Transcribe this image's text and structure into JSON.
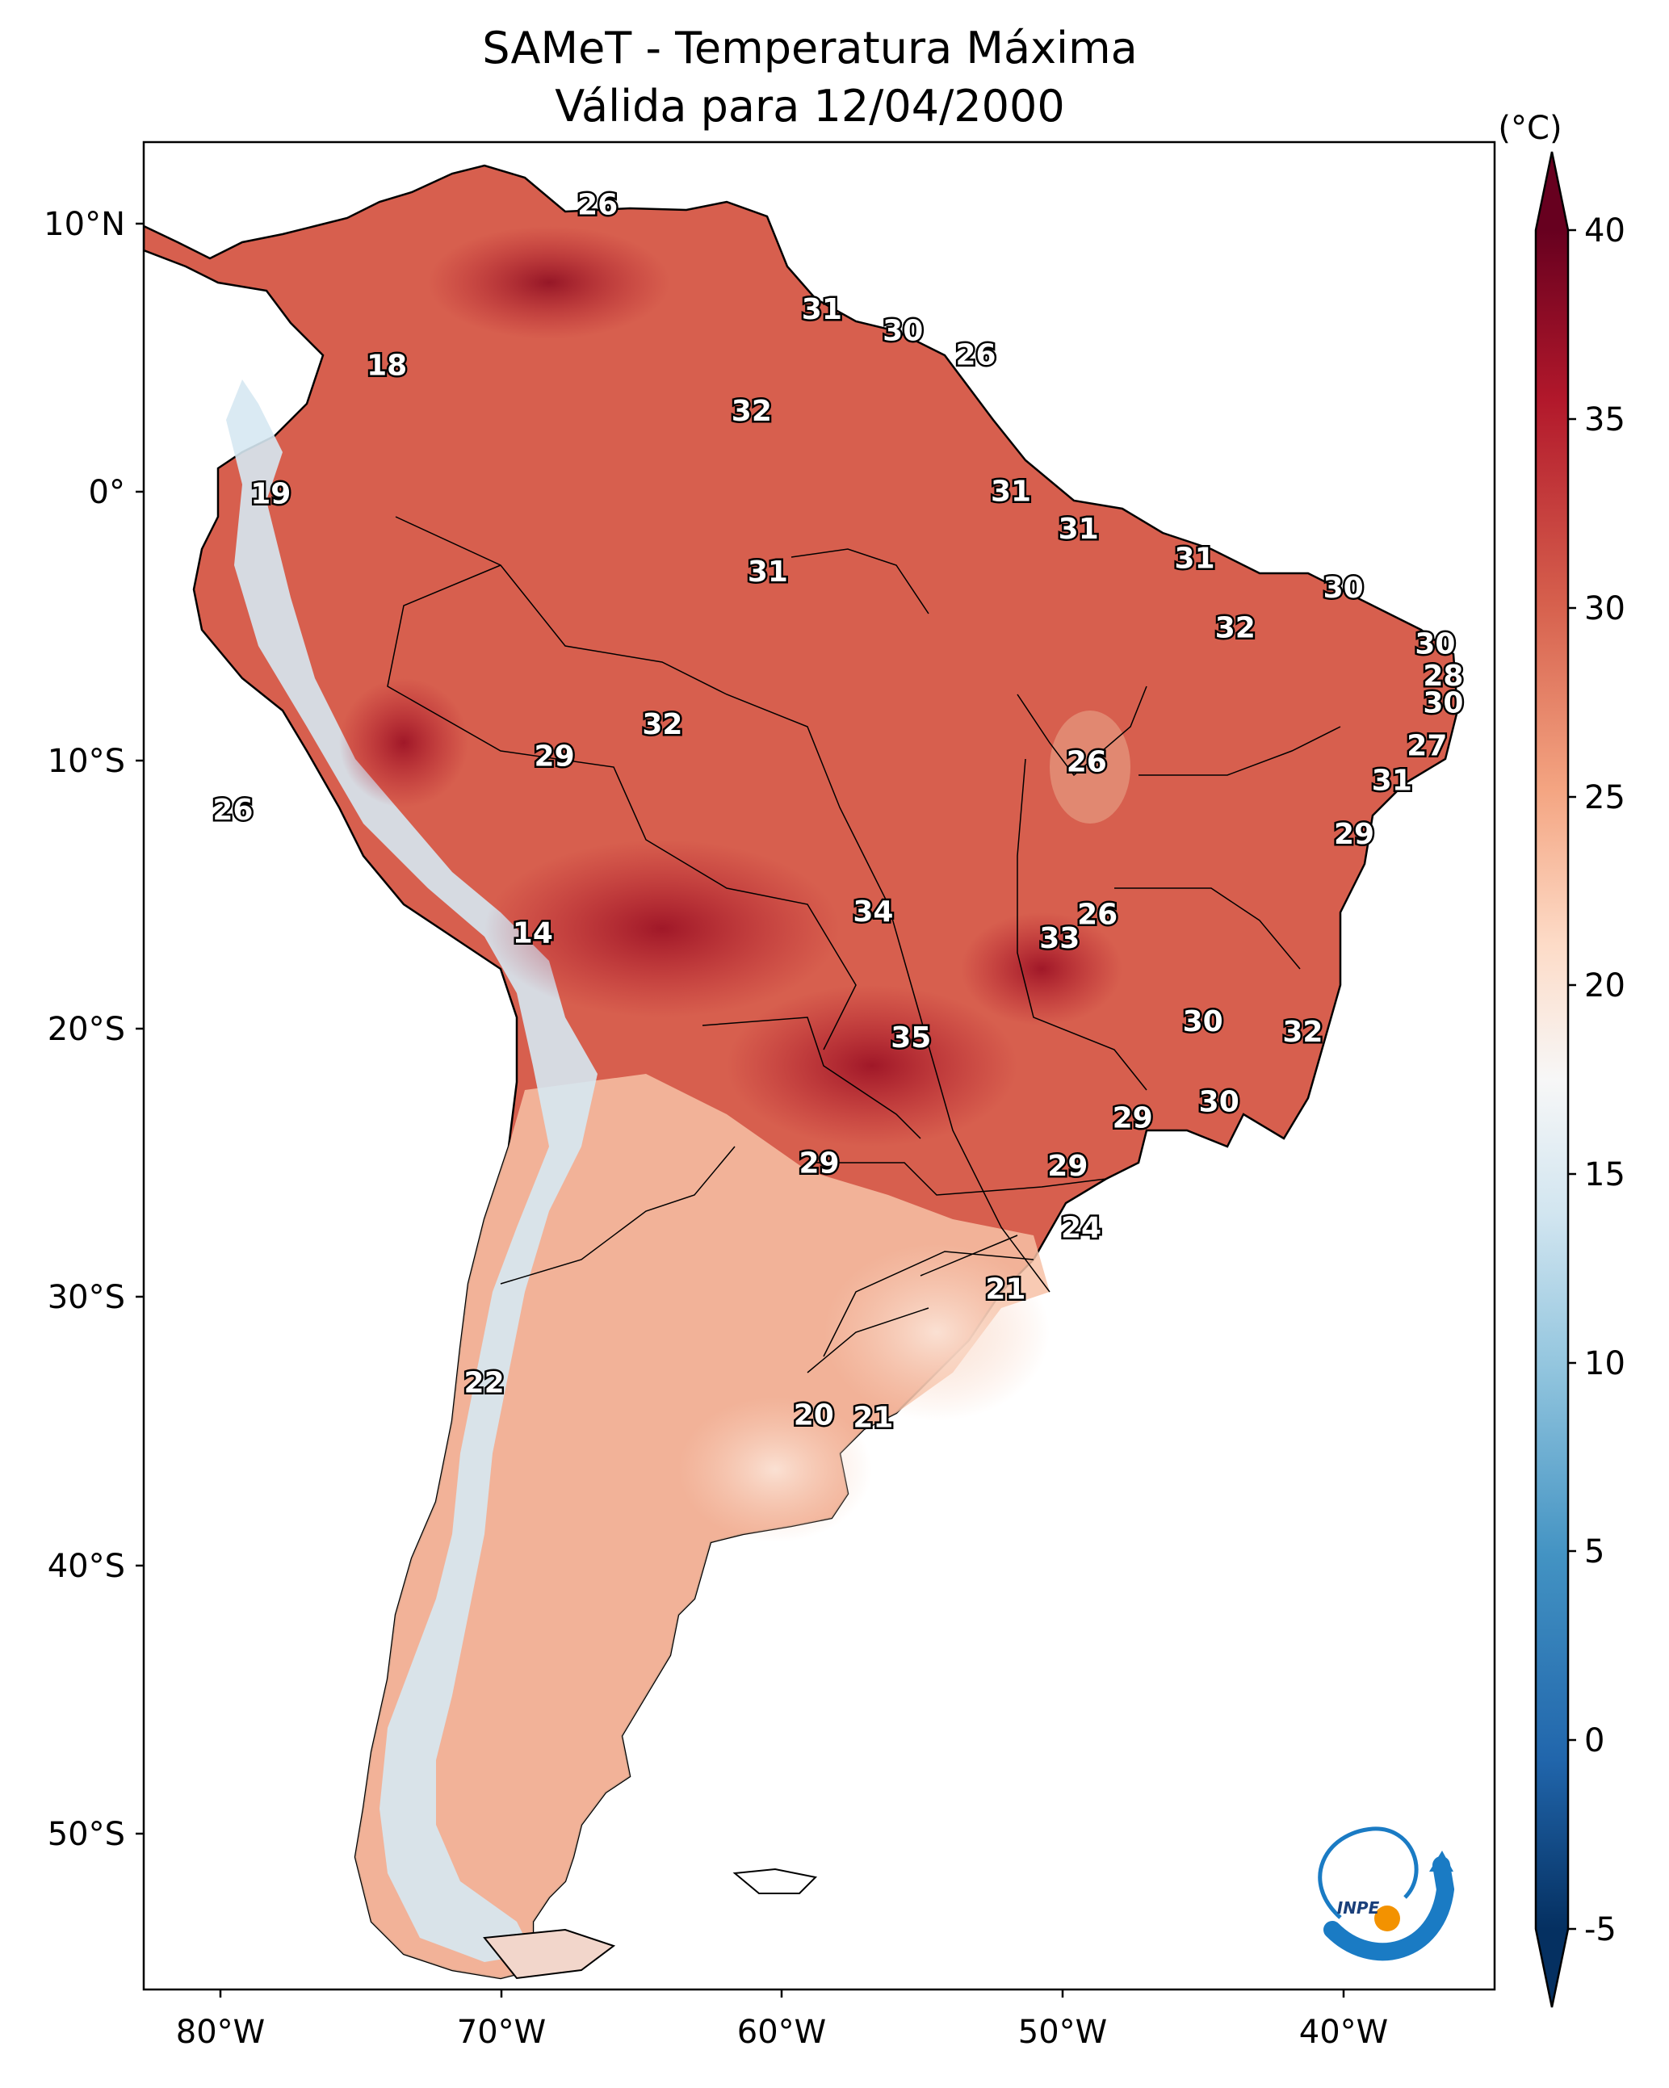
{
  "title": {
    "line1": "SAMeT - Temperatura Máxima",
    "line2": "Válida para 12/04/2000"
  },
  "map": {
    "lon_ticks": [
      "80°W",
      "70°W",
      "60°W",
      "50°W",
      "40°W"
    ],
    "lat_ticks": [
      "10°N",
      "0°",
      "10°S",
      "20°S",
      "30°S",
      "40°S",
      "50°S"
    ],
    "extent": {
      "lon": [
        -83,
        -33
      ],
      "lat": [
        -56,
        13
      ]
    }
  },
  "colorbar": {
    "unit": "(°C)",
    "ticks": [
      "40",
      "35",
      "30",
      "25",
      "20",
      "15",
      "10",
      "5",
      "0",
      "-5"
    ],
    "range": [
      -5,
      40
    ],
    "colors": [
      "#053061",
      "#2166ac",
      "#4393c3",
      "#92c5de",
      "#d1e5f0",
      "#f7f7f7",
      "#fddbc7",
      "#f4a582",
      "#d6604d",
      "#b2182b",
      "#67001f"
    ]
  },
  "labels": [
    {
      "text": "26",
      "lon": -66.2,
      "lat": 10.6
    },
    {
      "text": "31",
      "lon": -57.9,
      "lat": 6.7
    },
    {
      "text": "30",
      "lon": -54.9,
      "lat": 5.9
    },
    {
      "text": "26",
      "lon": -52.2,
      "lat": 5.0
    },
    {
      "text": "18",
      "lon": -74.0,
      "lat": 4.6
    },
    {
      "text": "32",
      "lon": -60.5,
      "lat": 2.9
    },
    {
      "text": "19",
      "lon": -78.3,
      "lat": -0.2
    },
    {
      "text": "31",
      "lon": -50.9,
      "lat": -0.1
    },
    {
      "text": "31",
      "lon": -48.4,
      "lat": -1.5
    },
    {
      "text": "31",
      "lon": -59.9,
      "lat": -3.1
    },
    {
      "text": "31",
      "lon": -44.1,
      "lat": -2.6
    },
    {
      "text": "30",
      "lon": -38.6,
      "lat": -3.7
    },
    {
      "text": "32",
      "lon": -42.6,
      "lat": -5.2
    },
    {
      "text": "30",
      "lon": -35.2,
      "lat": -5.8
    },
    {
      "text": "28",
      "lon": -34.9,
      "lat": -7.0
    },
    {
      "text": "30",
      "lon": -34.9,
      "lat": -8.0
    },
    {
      "text": "32",
      "lon": -63.8,
      "lat": -8.8
    },
    {
      "text": "29",
      "lon": -67.8,
      "lat": -10.0
    },
    {
      "text": "26",
      "lon": -48.1,
      "lat": -10.2
    },
    {
      "text": "27",
      "lon": -35.5,
      "lat": -9.6
    },
    {
      "text": "31",
      "lon": -36.8,
      "lat": -10.9
    },
    {
      "text": "26",
      "lon": -79.7,
      "lat": -12.0
    },
    {
      "text": "29",
      "lon": -38.2,
      "lat": -12.9
    },
    {
      "text": "34",
      "lon": -56.0,
      "lat": -15.8
    },
    {
      "text": "26",
      "lon": -47.7,
      "lat": -15.9
    },
    {
      "text": "33",
      "lon": -49.1,
      "lat": -16.8
    },
    {
      "text": "14",
      "lon": -68.6,
      "lat": -16.6
    },
    {
      "text": "30",
      "lon": -43.8,
      "lat": -19.9
    },
    {
      "text": "32",
      "lon": -40.1,
      "lat": -20.3
    },
    {
      "text": "35",
      "lon": -54.6,
      "lat": -20.5
    },
    {
      "text": "29",
      "lon": -46.4,
      "lat": -23.5
    },
    {
      "text": "30",
      "lon": -43.2,
      "lat": -22.9
    },
    {
      "text": "29",
      "lon": -58.0,
      "lat": -25.2
    },
    {
      "text": "29",
      "lon": -48.8,
      "lat": -25.3
    },
    {
      "text": "24",
      "lon": -48.3,
      "lat": -27.6
    },
    {
      "text": "21",
      "lon": -51.1,
      "lat": -29.9
    },
    {
      "text": "22",
      "lon": -70.4,
      "lat": -33.4
    },
    {
      "text": "20",
      "lon": -58.2,
      "lat": -34.6
    },
    {
      "text": "21",
      "lon": -56.0,
      "lat": -34.7
    }
  ],
  "logo": {
    "text": "INPE"
  }
}
